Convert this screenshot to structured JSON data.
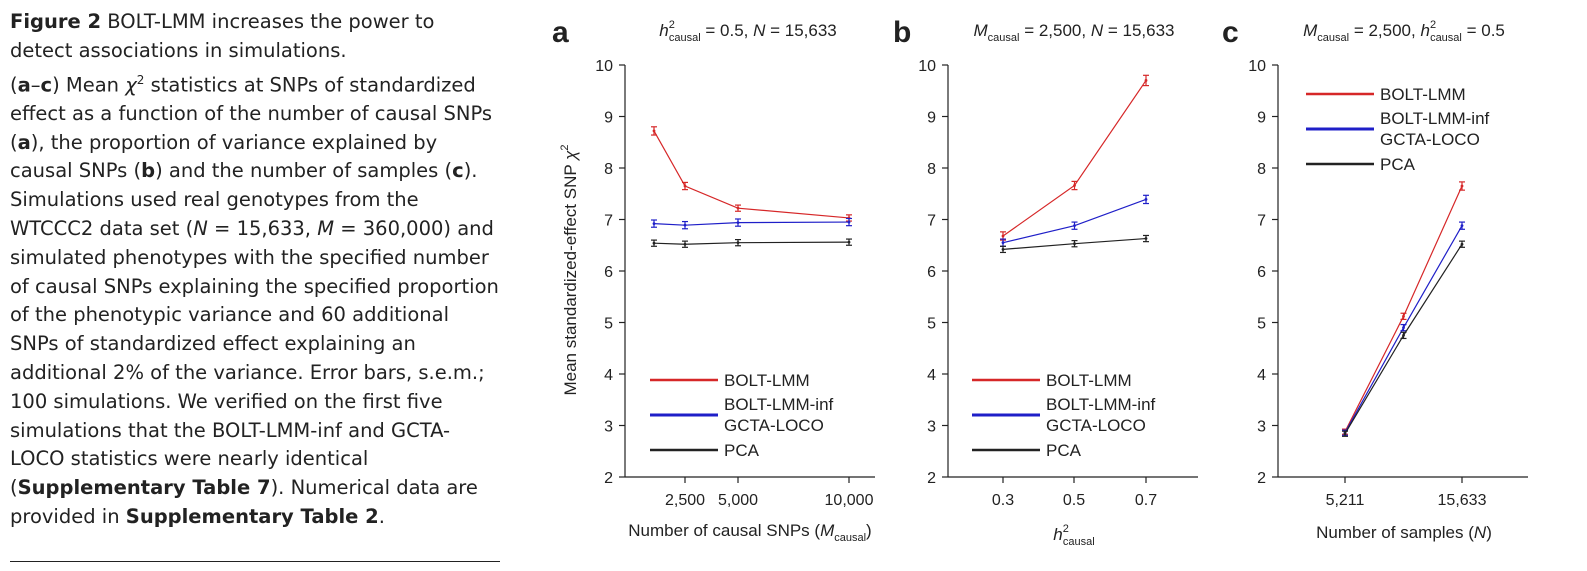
{
  "caption": {
    "fig_label": "Figure 2",
    "title": "BOLT-LMM increases the power to detect associations in simulations.",
    "p1": "(",
    "ac1": "a",
    "dash": "–",
    "ac2": "c",
    "p2": ") Mean ",
    "chi": "χ",
    "sq": "2",
    "p3": " statistics at SNPs of standardized effect as a function of the number of causal SNPs (",
    "a": "a",
    "p4": "), the proportion of variance explained by causal SNPs (",
    "b": "b",
    "p5": ") and the number of samples (",
    "c": "c",
    "p6": "). Simulations used real genotypes from the WTCCC2 data set (",
    "n_sym": "N",
    "n_val": " = 15,633, ",
    "m_sym": "M",
    "m_val": " = 360,000) and simulated phenotypes with the specified number of causal SNPs explaining the specified proportion of the phenotypic variance and 60 additional SNPs of standardized effect explaining an additional 2% of the variance. Error bars, s.e.m.; 100 simulations. We verified on the first five simulations that the BOLT-LMM-inf and GCTA-LOCO statistics were nearly identical (",
    "supp7": "Supplementary Table 7",
    "p7": "). Numerical data are provided in ",
    "supp2": "Supplementary Table 2",
    "p8": "."
  },
  "colors": {
    "bolt": "#d62728",
    "inf": "#1f1fc8",
    "pca": "#222222"
  },
  "chart_data": [
    {
      "type": "line",
      "panel": "a",
      "title": {
        "sym": "h",
        "sup": "2",
        "sub": "causal",
        "rest1": " = 0.5, ",
        "nsym": "N",
        "rest2": " = 15,633"
      },
      "ylabel": {
        "main": "Mean standardized-effect SNP ",
        "chi": "χ",
        "sup": "2"
      },
      "xlabel": {
        "main": "Number of causal SNPs (",
        "sym": "M",
        "sub": "causal",
        "end": ")"
      },
      "x_ticks": [
        "2,500",
        "5,000",
        "10,000"
      ],
      "y_ticks": [
        "2",
        "3",
        "4",
        "5",
        "6",
        "7",
        "8",
        "9",
        "10"
      ],
      "ylim": [
        2,
        10
      ],
      "legend_placement": "bottom-left",
      "legend": [
        "BOLT-LMM",
        "BOLT-LMM-inf",
        "GCTA-LOCO",
        "PCA"
      ],
      "series": [
        {
          "name": "BOLT-LMM",
          "x": [
            1500,
            2500,
            5000,
            10000
          ],
          "y": [
            8.72,
            7.65,
            7.22,
            7.03
          ],
          "err": [
            0.08,
            0.07,
            0.06,
            0.06
          ]
        },
        {
          "name": "BOLT-LMM-inf",
          "x": [
            1500,
            2500,
            5000,
            10000
          ],
          "y": [
            6.92,
            6.89,
            6.94,
            6.95
          ],
          "err": [
            0.07,
            0.07,
            0.07,
            0.07
          ]
        },
        {
          "name": "PCA",
          "x": [
            1500,
            2500,
            5000,
            10000
          ],
          "y": [
            6.54,
            6.52,
            6.55,
            6.56
          ],
          "err": [
            0.06,
            0.06,
            0.06,
            0.06
          ]
        }
      ]
    },
    {
      "type": "line",
      "panel": "b",
      "title": {
        "sym": "M",
        "sub": "causal",
        "rest1": " = 2,500, ",
        "nsym": "N",
        "rest2": " = 15,633"
      },
      "xlabel": {
        "sym": "h",
        "sup": "2",
        "sub": "causal"
      },
      "x_ticks": [
        "0.3",
        "0.5",
        "0.7"
      ],
      "y_ticks": [
        "2",
        "3",
        "4",
        "5",
        "6",
        "7",
        "8",
        "9",
        "10"
      ],
      "ylim": [
        2,
        10
      ],
      "legend_placement": "bottom-left",
      "legend": [
        "BOLT-LMM",
        "BOLT-LMM-inf",
        "GCTA-LOCO",
        "PCA"
      ],
      "series": [
        {
          "name": "BOLT-LMM",
          "x": [
            0.3,
            0.5,
            0.7
          ],
          "y": [
            6.68,
            7.66,
            9.7
          ],
          "err": [
            0.08,
            0.08,
            0.1
          ]
        },
        {
          "name": "BOLT-LMM-inf",
          "x": [
            0.3,
            0.5,
            0.7
          ],
          "y": [
            6.55,
            6.88,
            7.39
          ],
          "err": [
            0.07,
            0.07,
            0.08
          ]
        },
        {
          "name": "PCA",
          "x": [
            0.3,
            0.5,
            0.7
          ],
          "y": [
            6.42,
            6.53,
            6.63
          ],
          "err": [
            0.06,
            0.06,
            0.06
          ]
        }
      ]
    },
    {
      "type": "line",
      "panel": "c",
      "title": {
        "sym": "M",
        "sub": "causal",
        "rest1": " = 2,500,  ",
        "hsym": "h",
        "sup": "2",
        "hsub": "causal",
        "rest2": " = 0.5"
      },
      "xlabel": {
        "main": "Number of samples (",
        "sym": "N",
        "end": ")"
      },
      "x_ticks": [
        "5,211",
        "15,633"
      ],
      "y_ticks": [
        "2",
        "3",
        "4",
        "5",
        "6",
        "7",
        "8",
        "9",
        "10"
      ],
      "ylim": [
        2,
        10
      ],
      "legend_placement": "top-left",
      "legend": [
        "BOLT-LMM",
        "BOLT-LMM-inf",
        "GCTA-LOCO",
        "PCA"
      ],
      "series": [
        {
          "name": "BOLT-LMM",
          "x": [
            5211,
            10422,
            15633
          ],
          "y": [
            2.88,
            5.12,
            7.65
          ],
          "err": [
            0.05,
            0.06,
            0.08
          ]
        },
        {
          "name": "BOLT-LMM-inf",
          "x": [
            5211,
            10422,
            15633
          ],
          "y": [
            2.86,
            4.9,
            6.88
          ],
          "err": [
            0.05,
            0.06,
            0.07
          ]
        },
        {
          "name": "PCA",
          "x": [
            5211,
            10422,
            15633
          ],
          "y": [
            2.84,
            4.75,
            6.52
          ],
          "err": [
            0.05,
            0.06,
            0.06
          ]
        }
      ]
    }
  ]
}
